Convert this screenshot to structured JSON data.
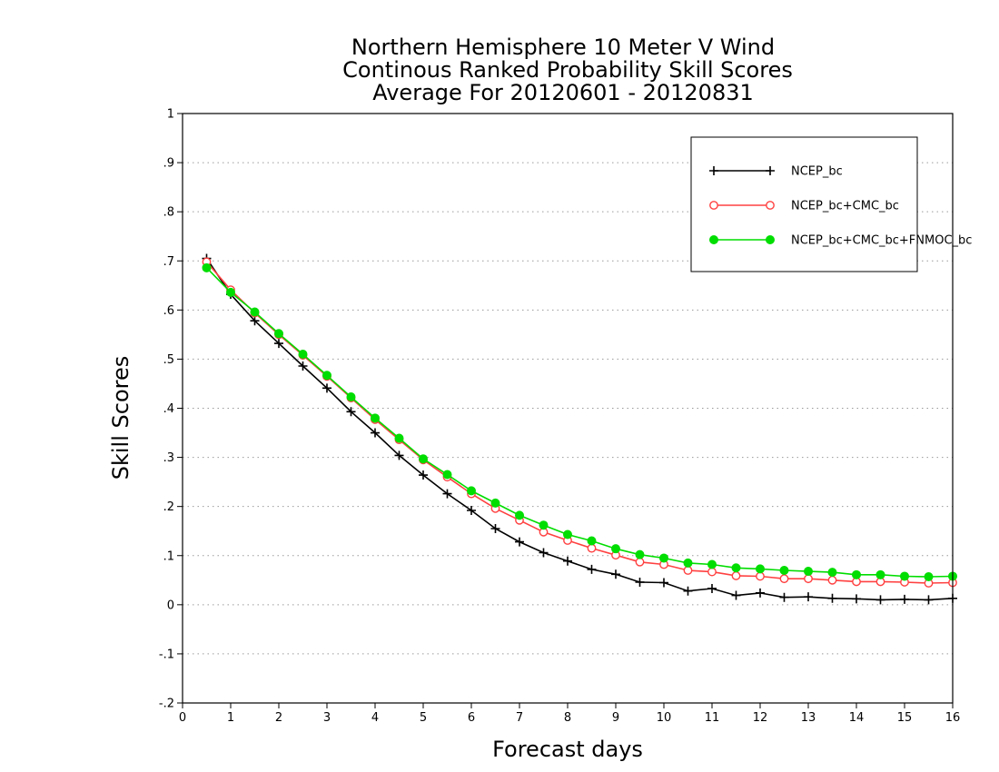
{
  "chart_data": {
    "type": "line",
    "title": [
      "Northern Hemisphere 10 Meter V Wind",
      "Continous Ranked Probability Skill Scores",
      "Average For 20120601 - 20120831"
    ],
    "xlabel": "Forecast days",
    "ylabel": "Skill Scores",
    "xlim": [
      0,
      16
    ],
    "ylim": [
      -0.2,
      1
    ],
    "xticks": [
      0,
      1,
      2,
      3,
      4,
      5,
      6,
      7,
      8,
      9,
      10,
      11,
      12,
      13,
      14,
      15,
      16
    ],
    "yticks": [
      -0.2,
      -0.1,
      0,
      0.1,
      0.2,
      0.3,
      0.4,
      0.5,
      0.6,
      0.7,
      0.8,
      0.9,
      1
    ],
    "grid": "horizontal dotted",
    "legend_position": "top-right",
    "x": [
      0.5,
      1,
      1.5,
      2,
      2.5,
      3,
      3.5,
      4,
      4.5,
      5,
      5.5,
      6,
      6.5,
      7,
      7.5,
      8,
      8.5,
      9,
      9.5,
      10,
      10.5,
      11,
      11.5,
      12,
      12.5,
      13,
      13.5,
      14,
      14.5,
      15,
      15.5,
      16
    ],
    "series": [
      {
        "name": "NCEP_bc",
        "color": "#000000",
        "marker": "plus",
        "values": [
          0.705,
          0.632,
          0.578,
          0.532,
          0.486,
          0.441,
          0.393,
          0.35,
          0.304,
          0.264,
          0.226,
          0.192,
          0.155,
          0.128,
          0.106,
          0.089,
          0.072,
          0.062,
          0.046,
          0.045,
          0.028,
          0.033,
          0.019,
          0.024,
          0.015,
          0.016,
          0.013,
          0.012,
          0.01,
          0.011,
          0.01,
          0.013
        ]
      },
      {
        "name": "NCEP_bc+CMC_bc",
        "color": "#ff4040",
        "marker": "open-circle",
        "values": [
          0.698,
          0.641,
          0.594,
          0.55,
          0.508,
          0.465,
          0.421,
          0.377,
          0.336,
          0.295,
          0.26,
          0.226,
          0.196,
          0.172,
          0.148,
          0.131,
          0.115,
          0.101,
          0.087,
          0.082,
          0.07,
          0.067,
          0.059,
          0.058,
          0.053,
          0.053,
          0.05,
          0.047,
          0.047,
          0.046,
          0.044,
          0.045
        ]
      },
      {
        "name": "NCEP_bc+CMC_bc+FNMOC_bc",
        "color": "#00dd00",
        "marker": "filled-circle",
        "values": [
          0.686,
          0.636,
          0.596,
          0.552,
          0.51,
          0.467,
          0.423,
          0.38,
          0.339,
          0.297,
          0.265,
          0.232,
          0.207,
          0.182,
          0.162,
          0.143,
          0.13,
          0.114,
          0.102,
          0.095,
          0.085,
          0.082,
          0.075,
          0.073,
          0.07,
          0.068,
          0.066,
          0.061,
          0.061,
          0.058,
          0.057,
          0.058
        ]
      }
    ]
  }
}
